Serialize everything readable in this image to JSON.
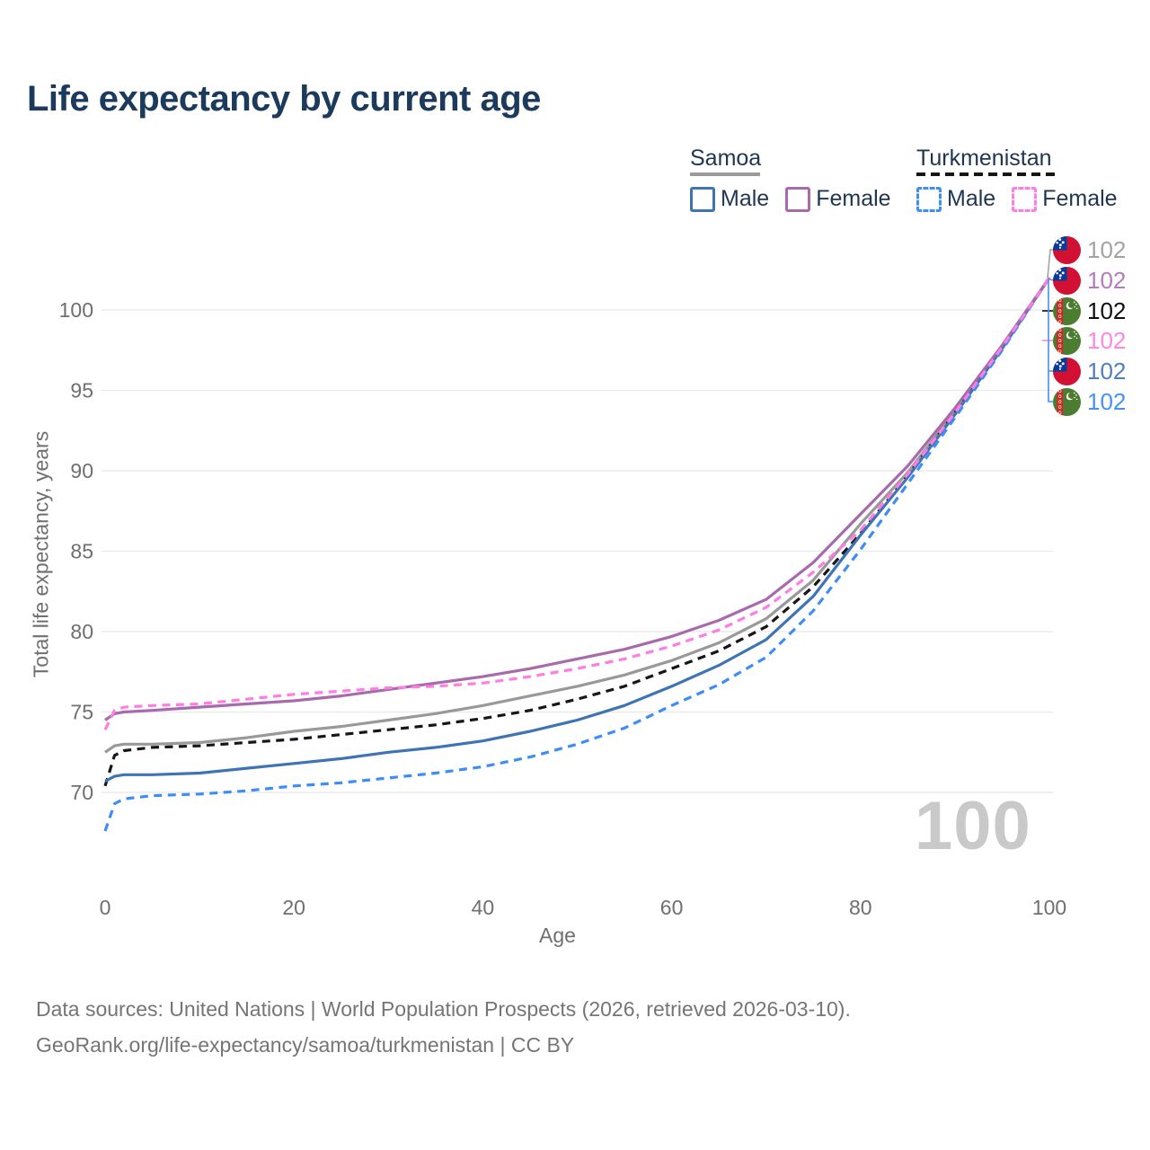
{
  "title": "Life expectancy by current age",
  "legend": {
    "groups": [
      {
        "country": "Samoa",
        "line_style": "solid",
        "underline_color": "#9a9a9a",
        "items": [
          {
            "label": "Male",
            "color": "#3e74b5",
            "dashed": false
          },
          {
            "label": "Female",
            "color": "#a76aad",
            "dashed": false
          }
        ]
      },
      {
        "country": "Turkmenistan",
        "line_style": "dashed",
        "underline_color": "#161616",
        "items": [
          {
            "label": "Male",
            "color": "#3e8df6",
            "dashed": true
          },
          {
            "label": "Female",
            "color": "#ff7ce2",
            "dashed": true
          }
        ]
      }
    ]
  },
  "chart_data": {
    "type": "line",
    "title": "Life expectancy by current age",
    "xlabel": "Age",
    "ylabel": "Total life expectancy, years",
    "x_ticks": [
      0,
      20,
      40,
      60,
      80,
      100
    ],
    "y_ticks": [
      70,
      75,
      80,
      85,
      90,
      95,
      100
    ],
    "xlim": [
      0,
      100
    ],
    "ylim": [
      67,
      102.5
    ],
    "grid": "horizontal",
    "legend_position": "top-right",
    "hovered_age": "100",
    "x": [
      0,
      1,
      2,
      5,
      10,
      15,
      20,
      25,
      30,
      35,
      40,
      45,
      50,
      55,
      60,
      65,
      70,
      75,
      80,
      85,
      90,
      95,
      100
    ],
    "series": [
      {
        "name": "Samoa Total",
        "country": "Samoa",
        "sex": "Total",
        "color": "#999999",
        "dashed": false,
        "values": [
          72.5,
          72.9,
          73.0,
          73.0,
          73.1,
          73.4,
          73.8,
          74.1,
          74.5,
          74.9,
          75.4,
          76.0,
          76.6,
          77.3,
          78.2,
          79.3,
          80.8,
          83.2,
          86.7,
          89.9,
          93.7,
          97.7,
          102
        ]
      },
      {
        "name": "Turkmenistan Total",
        "country": "Turkmenistan",
        "sex": "Total",
        "color": "#161616",
        "dashed": true,
        "values": [
          70.4,
          72.3,
          72.6,
          72.8,
          72.9,
          73.1,
          73.3,
          73.6,
          73.9,
          74.2,
          74.6,
          75.1,
          75.8,
          76.6,
          77.7,
          78.8,
          80.3,
          82.8,
          86.1,
          89.7,
          93.6,
          97.7,
          102
        ]
      },
      {
        "name": "Samoa Male",
        "country": "Samoa",
        "sex": "Male",
        "color": "#3e74b5",
        "dashed": false,
        "values": [
          70.7,
          71.0,
          71.1,
          71.1,
          71.2,
          71.5,
          71.8,
          72.1,
          72.5,
          72.8,
          73.2,
          73.8,
          74.5,
          75.4,
          76.6,
          77.9,
          79.5,
          82.2,
          86.0,
          89.6,
          93.5,
          97.6,
          102
        ]
      },
      {
        "name": "Turkmenistan Male",
        "country": "Turkmenistan",
        "sex": "Male",
        "color": "#3e8df6",
        "dashed": true,
        "values": [
          67.6,
          69.3,
          69.6,
          69.8,
          69.9,
          70.1,
          70.4,
          70.6,
          70.9,
          71.2,
          71.6,
          72.2,
          73.0,
          74.0,
          75.4,
          76.7,
          78.4,
          81.3,
          85.1,
          89.2,
          93.3,
          97.5,
          102
        ]
      },
      {
        "name": "Samoa Female",
        "country": "Samoa",
        "sex": "Female",
        "color": "#a76aad",
        "dashed": false,
        "values": [
          74.5,
          74.9,
          75.0,
          75.1,
          75.3,
          75.5,
          75.7,
          76.0,
          76.4,
          76.8,
          77.2,
          77.7,
          78.3,
          78.9,
          79.7,
          80.7,
          82.0,
          84.3,
          87.3,
          90.3,
          93.9,
          97.8,
          102
        ]
      },
      {
        "name": "Turkmenistan Female",
        "country": "Turkmenistan",
        "sex": "Female",
        "color": "#ff7ce2",
        "dashed": true,
        "values": [
          73.9,
          75.1,
          75.3,
          75.4,
          75.5,
          75.8,
          76.1,
          76.3,
          76.5,
          76.6,
          76.8,
          77.2,
          77.7,
          78.3,
          79.1,
          80.1,
          81.5,
          83.7,
          86.3,
          89.8,
          93.6,
          97.7,
          102
        ]
      }
    ],
    "end_labels": [
      {
        "series": "Samoa Total",
        "flag": "samoa",
        "value": "102",
        "color": "#a3a3a3"
      },
      {
        "series": "Samoa Female",
        "flag": "samoa",
        "value": "102",
        "color": "#b57bbd"
      },
      {
        "series": "Turkmenistan Total",
        "flag": "turkmenistan",
        "value": "102",
        "color": "#0f0f0f"
      },
      {
        "series": "Turkmenistan Female",
        "flag": "turkmenistan",
        "value": "102",
        "color": "#ff86e3"
      },
      {
        "series": "Samoa Male",
        "flag": "samoa",
        "value": "102",
        "color": "#4e7fc0"
      },
      {
        "series": "Turkmenistan Male",
        "flag": "turkmenistan",
        "value": "102",
        "color": "#4691f6"
      }
    ]
  },
  "watermark": "100",
  "footer": {
    "line1": "Data sources: United Nations | World Population Prospects (2026, retrieved 2026-03-10).",
    "line2": "GeoRank.org/life-expectancy/samoa/turkmenistan | CC BY"
  }
}
